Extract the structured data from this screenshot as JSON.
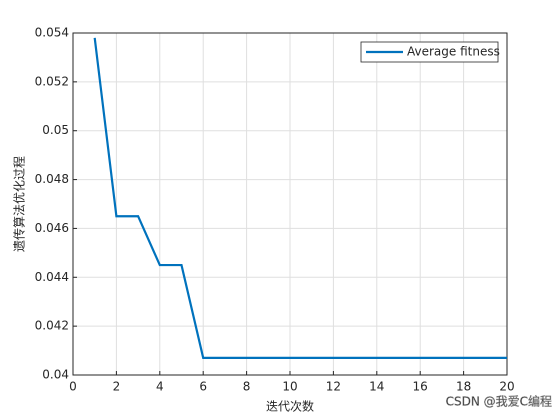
{
  "chart_data": {
    "type": "line",
    "x": [
      1,
      2,
      3,
      4,
      5,
      6,
      7,
      8,
      9,
      10,
      11,
      12,
      13,
      14,
      15,
      16,
      17,
      18,
      19,
      20
    ],
    "series": [
      {
        "name": "Average fitness",
        "color": "#0072bd",
        "values": [
          0.0538,
          0.0465,
          0.0465,
          0.0445,
          0.0445,
          0.0407,
          0.0407,
          0.0407,
          0.0407,
          0.0407,
          0.0407,
          0.0407,
          0.0407,
          0.0407,
          0.0407,
          0.0407,
          0.0407,
          0.0407,
          0.0407,
          0.0407
        ]
      }
    ],
    "xlabel": "迭代次数",
    "ylabel": "遗传算法优化过程",
    "xlim": [
      0,
      20
    ],
    "xticks": [
      0,
      2,
      4,
      6,
      8,
      10,
      12,
      14,
      16,
      18,
      20
    ],
    "ylim": [
      0.04,
      0.054
    ],
    "yticks": [
      0.04,
      0.042,
      0.044,
      0.046,
      0.048,
      0.05,
      0.052,
      0.054
    ],
    "grid": true,
    "legend": "top-right",
    "watermark": "CSDN @我爱C编程"
  }
}
